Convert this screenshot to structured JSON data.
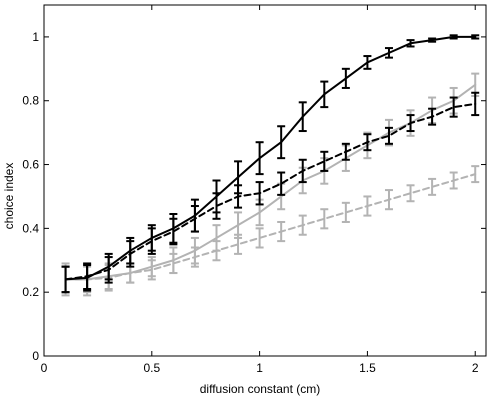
{
  "chart_data": {
    "type": "line",
    "title": "",
    "xlabel": "diffusion constant (cm)",
    "ylabel": "choice index",
    "xlim": [
      0,
      2.05
    ],
    "ylim": [
      0,
      1.1
    ],
    "xticks": [
      0,
      0.5,
      1,
      1.5,
      2
    ],
    "xtick_labels": [
      "0",
      "0.5",
      "1",
      "1.5",
      "2"
    ],
    "yticks": [
      0,
      0.2,
      0.4,
      0.6,
      0.8,
      1
    ],
    "ytick_labels": [
      "0",
      "0.2",
      "0.4",
      "0.6",
      "0.8",
      "1"
    ],
    "grid": false,
    "legend": false,
    "x": [
      0.1,
      0.2,
      0.3,
      0.4,
      0.5,
      0.6,
      0.7,
      0.8,
      0.9,
      1.0,
      1.1,
      1.2,
      1.3,
      1.4,
      1.5,
      1.6,
      1.7,
      1.8,
      1.9,
      2.0
    ],
    "series": [
      {
        "color": "#000000",
        "style": "solid",
        "values": [
          0.24,
          0.245,
          0.28,
          0.33,
          0.37,
          0.4,
          0.44,
          0.5,
          0.56,
          0.62,
          0.67,
          0.75,
          0.82,
          0.87,
          0.92,
          0.95,
          0.98,
          0.99,
          1.0,
          1.0
        ],
        "errors": [
          0.04,
          0.04,
          0.04,
          0.04,
          0.04,
          0.045,
          0.05,
          0.05,
          0.05,
          0.05,
          0.05,
          0.045,
          0.04,
          0.03,
          0.02,
          0.015,
          0.01,
          0.005,
          0.005,
          0.005
        ]
      },
      {
        "color": "#000000",
        "style": "dashed",
        "values": [
          0.24,
          0.25,
          0.27,
          0.32,
          0.36,
          0.39,
          0.43,
          0.47,
          0.5,
          0.51,
          0.54,
          0.58,
          0.61,
          0.64,
          0.67,
          0.69,
          0.73,
          0.75,
          0.78,
          0.79
        ],
        "errors": [
          0.04,
          0.04,
          0.04,
          0.04,
          0.04,
          0.04,
          0.04,
          0.04,
          0.035,
          0.035,
          0.035,
          0.035,
          0.03,
          0.025,
          0.025,
          0.025,
          0.025,
          0.025,
          0.03,
          0.035
        ]
      },
      {
        "color": "#b3b3b3",
        "style": "solid",
        "values": [
          0.24,
          0.24,
          0.25,
          0.26,
          0.28,
          0.3,
          0.33,
          0.37,
          0.41,
          0.45,
          0.5,
          0.55,
          0.58,
          0.62,
          0.66,
          0.7,
          0.73,
          0.77,
          0.8,
          0.85
        ],
        "errors": [
          0.05,
          0.05,
          0.04,
          0.03,
          0.03,
          0.04,
          0.04,
          0.04,
          0.04,
          0.04,
          0.04,
          0.04,
          0.04,
          0.04,
          0.04,
          0.04,
          0.04,
          0.04,
          0.04,
          0.035
        ]
      },
      {
        "color": "#b3b3b3",
        "style": "dashed",
        "values": [
          0.24,
          0.24,
          0.245,
          0.26,
          0.27,
          0.29,
          0.31,
          0.33,
          0.35,
          0.37,
          0.39,
          0.41,
          0.43,
          0.45,
          0.47,
          0.49,
          0.51,
          0.53,
          0.55,
          0.57
        ],
        "errors": [
          0.04,
          0.04,
          0.04,
          0.03,
          0.03,
          0.03,
          0.03,
          0.03,
          0.03,
          0.03,
          0.03,
          0.03,
          0.03,
          0.03,
          0.03,
          0.03,
          0.025,
          0.025,
          0.025,
          0.025
        ]
      }
    ]
  }
}
